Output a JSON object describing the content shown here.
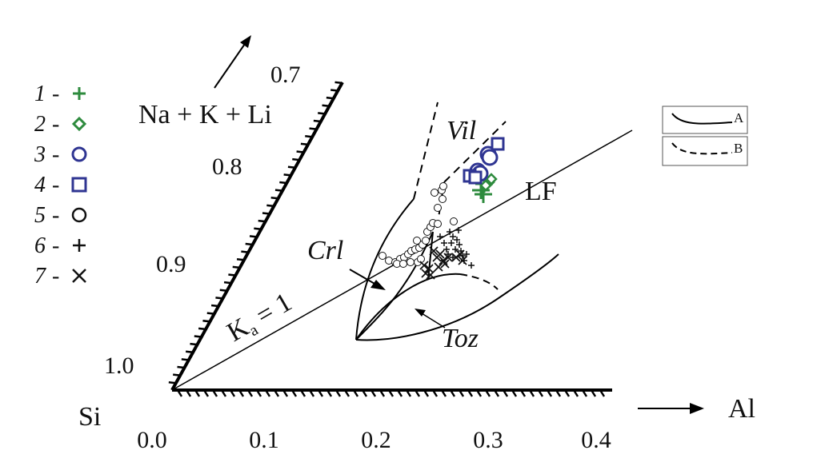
{
  "axes": {
    "vertex_label": "Si",
    "al_label": "Al",
    "alk_label": "Na + K + Li",
    "ka_label_main": "K",
    "ka_label_sub": "a",
    "ka_label_tail": " = 1",
    "al_ticks": [
      "0.0",
      "0.1",
      "0.2",
      "0.3",
      "0.4"
    ],
    "alk_ticks": [
      "1.0",
      "0.9",
      "0.8",
      "0.7"
    ]
  },
  "fields": {
    "vil": "Vil",
    "crl": "Crl",
    "toz": "Toz",
    "lf": "LF"
  },
  "legend": [
    {
      "num": "1",
      "dash": "-",
      "symbol": "plus",
      "color": "#2e8b3e",
      "icon": "green-plus-icon"
    },
    {
      "num": "2",
      "dash": "-",
      "symbol": "diamond",
      "color": "#2e8b3e",
      "icon": "green-diamond-icon"
    },
    {
      "num": "3",
      "dash": "-",
      "symbol": "circle",
      "color": "#2f3592",
      "icon": "blue-circle-icon"
    },
    {
      "num": "4",
      "dash": "-",
      "symbol": "square",
      "color": "#2f3592",
      "icon": "blue-square-icon"
    },
    {
      "num": "5",
      "dash": "-",
      "symbol": "circle",
      "color": "#111111",
      "icon": "black-circle-icon"
    },
    {
      "num": "6",
      "dash": "-",
      "symbol": "plus",
      "color": "#111111",
      "icon": "black-plus-icon"
    },
    {
      "num": "7",
      "dash": "-",
      "symbol": "cross",
      "color": "#111111",
      "icon": "black-cross-icon"
    }
  ],
  "line_key": {
    "a": "A",
    "b": "B"
  }
}
